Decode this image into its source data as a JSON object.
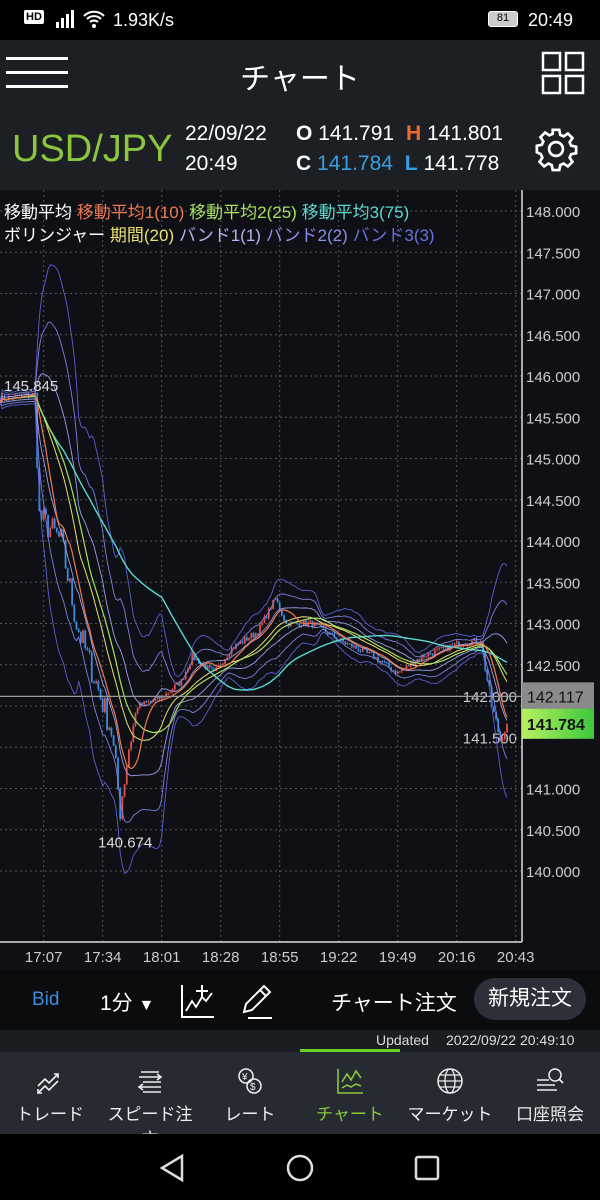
{
  "status_bar": {
    "network_speed": "1.93K/s",
    "battery": "81",
    "time": "20:49",
    "hd_badge": "HD"
  },
  "app_bar": {
    "title": "チャート",
    "menu_icon": "hamburger-icon",
    "grid_icon": "grid-icon"
  },
  "quote": {
    "pair": "USD/JPY",
    "date": "22/09/22",
    "time": "20:49",
    "open_label": "O",
    "open": "141.791",
    "high_label": "H",
    "high": "141.801",
    "close_label": "C",
    "close": "141.784",
    "low_label": "L",
    "low": "141.778"
  },
  "legend": {
    "ma_title": "移動平均",
    "ma1": "移動平均1(10)",
    "ma2": "移動平均2(25)",
    "ma3": "移動平均3(75)",
    "bb_title": "ボリンジャー",
    "bb_period": "期間(20)",
    "band1": "バンド1(1)",
    "band2": "バンド2(2)",
    "band3": "バンド3(3)"
  },
  "colors": {
    "accent": "#8cc63f",
    "up": "#e0504a",
    "down": "#3a8de0",
    "ma1": "#f07850",
    "ma2": "#a8e060",
    "ma3": "#5ad8d0",
    "bb_mid": "#e8e070",
    "band": "#8a90e0"
  },
  "chart_data": {
    "type": "candlestick",
    "y_ticks": [
      "148.000",
      "147.500",
      "147.000",
      "146.500",
      "146.000",
      "145.500",
      "145.000",
      "144.500",
      "144.000",
      "143.500",
      "143.000",
      "142.500",
      "142.000",
      "141.500",
      "141.000",
      "140.500",
      "140.000"
    ],
    "x_ticks": [
      "17:07",
      "17:34",
      "18:01",
      "18:28",
      "18:55",
      "19:22",
      "19:49",
      "20:16",
      "20:43"
    ],
    "ylim": [
      139.1,
      148.2
    ],
    "high_label": "145.845",
    "low_label": "140.674",
    "reference_price": "142.117",
    "current_price": "141.784",
    "close_path": [
      [
        "16:47",
        145.72
      ],
      [
        "17:03",
        145.78
      ],
      [
        "17:05",
        144.3
      ],
      [
        "17:15",
        144.0
      ],
      [
        "17:22",
        143.0
      ],
      [
        "17:32",
        142.2
      ],
      [
        "17:38",
        141.7
      ],
      [
        "17:42",
        140.75
      ],
      [
        "17:46",
        141.5
      ],
      [
        "17:50",
        142.0
      ],
      [
        "18:01",
        142.1
      ],
      [
        "18:10",
        142.3
      ],
      [
        "18:15",
        142.6
      ],
      [
        "18:25",
        142.4
      ],
      [
        "18:33",
        142.7
      ],
      [
        "18:45",
        142.9
      ],
      [
        "18:53",
        143.3
      ],
      [
        "18:58",
        143.0
      ],
      [
        "19:10",
        143.0
      ],
      [
        "19:22",
        142.8
      ],
      [
        "19:38",
        142.6
      ],
      [
        "19:49",
        142.4
      ],
      [
        "20:00",
        142.6
      ],
      [
        "20:16",
        142.75
      ],
      [
        "20:27",
        142.8
      ],
      [
        "20:32",
        142.0
      ],
      [
        "20:36",
        141.6
      ],
      [
        "20:39",
        141.784
      ]
    ]
  },
  "toolbar": {
    "price_type": "Bid",
    "interval": "1分",
    "chart_order": "チャート注文",
    "new_order": "新規注文"
  },
  "updated": {
    "label": "Updated",
    "timestamp": "2022/09/22  20:49:10"
  },
  "nav": [
    {
      "label": "トレード"
    },
    {
      "label": "スピード注文"
    },
    {
      "label": "レート"
    },
    {
      "label": "チャート"
    },
    {
      "label": "マーケット"
    },
    {
      "label": "口座照会"
    }
  ]
}
